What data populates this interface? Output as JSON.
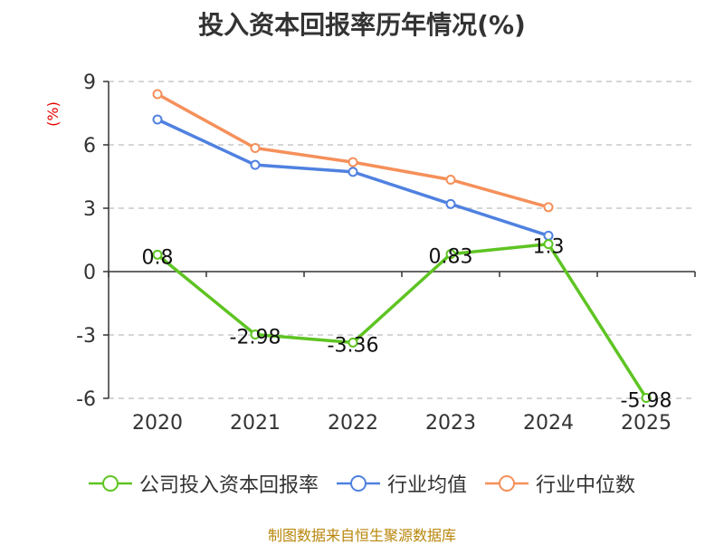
{
  "chart_data": {
    "type": "line",
    "title": "投入资本回报率历年情况(%)",
    "ylabel": "(%)",
    "xlabel": "",
    "categories": [
      "2020",
      "2021",
      "2022",
      "2023",
      "2024",
      "2025"
    ],
    "ylim": [
      -6,
      9
    ],
    "yticks": [
      -6,
      -3,
      0,
      3,
      6,
      9
    ],
    "grid": true,
    "legend_position": "bottom",
    "series": [
      {
        "name": "公司投入资本回报率",
        "color": "#5ec422",
        "values": [
          0.8,
          -2.98,
          -3.36,
          0.83,
          1.3,
          -5.98
        ],
        "labels": [
          "0.8",
          "-2.98",
          "-3.36",
          "0.83",
          "1.3",
          "-5.98"
        ]
      },
      {
        "name": "行业均值",
        "color": "#4f81e0",
        "values": [
          7.2,
          5.05,
          4.72,
          3.2,
          1.7,
          null
        ]
      },
      {
        "name": "行业中位数",
        "color": "#f5905a",
        "values": [
          8.4,
          5.85,
          5.18,
          4.35,
          3.05,
          null
        ]
      }
    ]
  },
  "source": "制图数据来自恒生聚源数据库"
}
